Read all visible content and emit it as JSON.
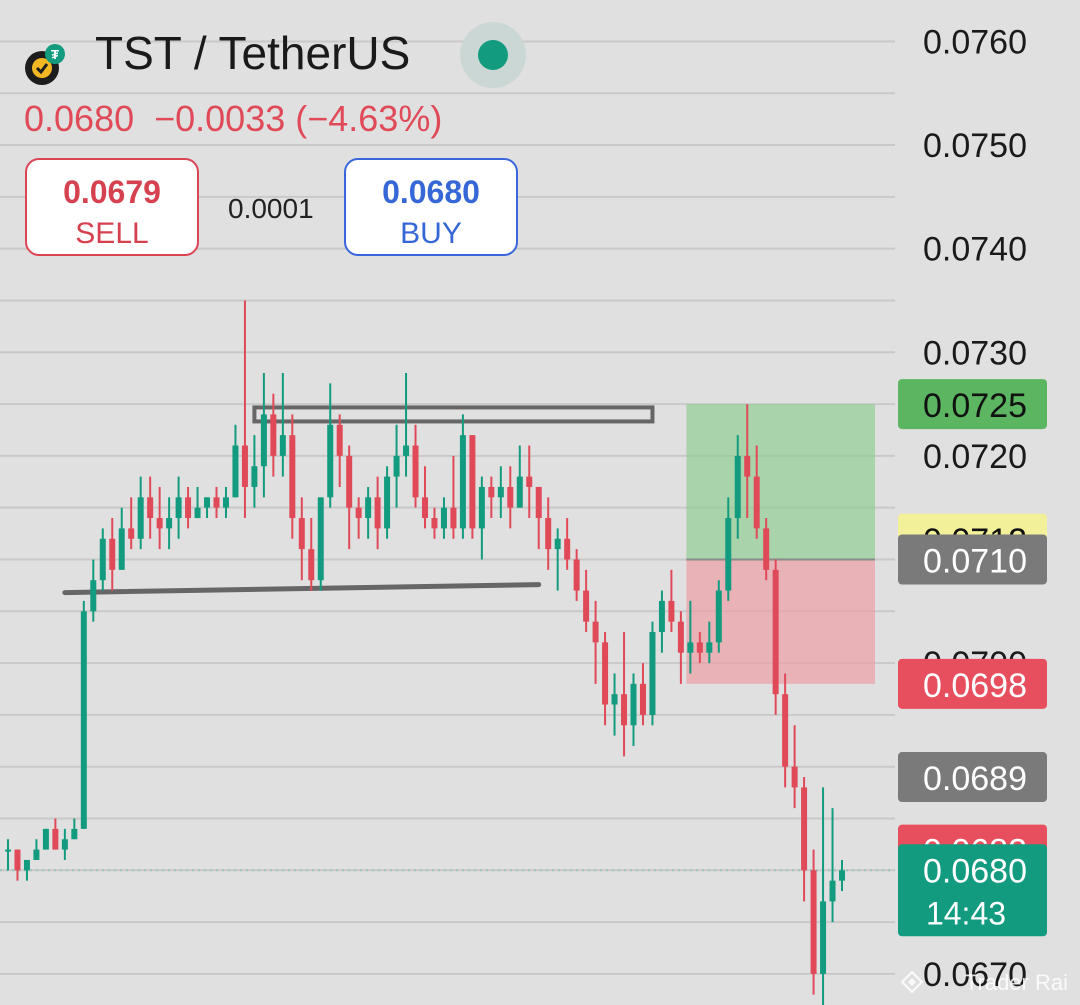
{
  "header": {
    "symbol": "TST / TetherUS",
    "price": "0.0680",
    "change": "−0.0033 (−4.63%)",
    "sell": {
      "price": "0.0679",
      "label": "SELL"
    },
    "buy": {
      "price": "0.0680",
      "label": "BUY"
    },
    "spread": "0.0001"
  },
  "watermark": "Trader Rai",
  "colors": {
    "up": "#129b7f",
    "down": "#e04a58",
    "grid": "#c9c9c9",
    "background": "#e0e0e0"
  },
  "chart_data": {
    "type": "candlestick",
    "title": "TST / TetherUS",
    "ylim": [
      0.0667,
      0.0764
    ],
    "y_ticks": [
      "0.0760",
      "0.0750",
      "0.0740",
      "0.0730",
      "0.0720",
      "0.0700",
      "0.0670"
    ],
    "grid": true,
    "price_labels": [
      {
        "value": 0.0725,
        "text": "0.0725",
        "color": "#5cb560",
        "text_color": "#111111"
      },
      {
        "value": 0.0712,
        "text": "0.0712",
        "color": "#f3f09a",
        "text_color": "#111111"
      },
      {
        "value": 0.071,
        "text": "0.0710",
        "color": "#7a7a7a",
        "text_color": "#ffffff"
      },
      {
        "value": 0.0698,
        "text": "0.0698",
        "color": "#e84f5e",
        "text_color": "#ffffff"
      },
      {
        "value": 0.0689,
        "text": "0.0689",
        "color": "#7a7a7a",
        "text_color": "#ffffff"
      },
      {
        "value": 0.0682,
        "text": "0.0682",
        "color": "#e84f5e",
        "text_color": "#ffffff"
      },
      {
        "value": 0.068,
        "text": "0.0680",
        "sub": "14:43",
        "color": "#129b7f",
        "text_color": "#ffffff"
      }
    ],
    "position": {
      "entry": 0.071,
      "target": 0.0725,
      "stop": 0.0698
    },
    "resistance": 0.0724,
    "support": 0.0707,
    "candles": [
      [
        0.0682,
        0.0683,
        0.068,
        0.0682
      ],
      [
        0.0682,
        0.0682,
        0.0679,
        0.068
      ],
      [
        0.068,
        0.0681,
        0.0679,
        0.0681
      ],
      [
        0.0681,
        0.0683,
        0.0681,
        0.0682
      ],
      [
        0.0682,
        0.0684,
        0.0682,
        0.0684
      ],
      [
        0.0684,
        0.0685,
        0.0682,
        0.0682
      ],
      [
        0.0682,
        0.0684,
        0.0681,
        0.0683
      ],
      [
        0.0683,
        0.0685,
        0.0683,
        0.0684
      ],
      [
        0.0684,
        0.0706,
        0.0684,
        0.0705
      ],
      [
        0.0705,
        0.071,
        0.0704,
        0.0708
      ],
      [
        0.0708,
        0.0713,
        0.0707,
        0.0712
      ],
      [
        0.0712,
        0.0714,
        0.0707,
        0.0709
      ],
      [
        0.0709,
        0.0715,
        0.0709,
        0.0713
      ],
      [
        0.0713,
        0.0716,
        0.0711,
        0.0712
      ],
      [
        0.0712,
        0.0718,
        0.0711,
        0.0716
      ],
      [
        0.0716,
        0.0718,
        0.0712,
        0.0714
      ],
      [
        0.0714,
        0.0717,
        0.0711,
        0.0713
      ],
      [
        0.0713,
        0.0716,
        0.0711,
        0.0714
      ],
      [
        0.0714,
        0.0718,
        0.0712,
        0.0716
      ],
      [
        0.0716,
        0.0717,
        0.0713,
        0.0714
      ],
      [
        0.0714,
        0.0717,
        0.0714,
        0.0715
      ],
      [
        0.0715,
        0.0716,
        0.0714,
        0.0716
      ],
      [
        0.0716,
        0.0717,
        0.0714,
        0.0715
      ],
      [
        0.0715,
        0.0717,
        0.0714,
        0.0716
      ],
      [
        0.0716,
        0.0723,
        0.0716,
        0.0721
      ],
      [
        0.0721,
        0.0735,
        0.0714,
        0.0717
      ],
      [
        0.0717,
        0.0722,
        0.0715,
        0.0719
      ],
      [
        0.0719,
        0.0728,
        0.0716,
        0.0724
      ],
      [
        0.0724,
        0.0726,
        0.0718,
        0.072
      ],
      [
        0.072,
        0.0728,
        0.0718,
        0.0722
      ],
      [
        0.0722,
        0.0724,
        0.0712,
        0.0714
      ],
      [
        0.0714,
        0.0716,
        0.0708,
        0.0711
      ],
      [
        0.0711,
        0.0714,
        0.0707,
        0.0708
      ],
      [
        0.0708,
        0.0716,
        0.0707,
        0.0716
      ],
      [
        0.0716,
        0.0727,
        0.0715,
        0.0723
      ],
      [
        0.0723,
        0.0724,
        0.0717,
        0.072
      ],
      [
        0.072,
        0.0721,
        0.0711,
        0.0715
      ],
      [
        0.0715,
        0.0716,
        0.0712,
        0.0714
      ],
      [
        0.0714,
        0.0717,
        0.0712,
        0.0716
      ],
      [
        0.0716,
        0.0718,
        0.0711,
        0.0713
      ],
      [
        0.0713,
        0.0719,
        0.0712,
        0.0718
      ],
      [
        0.0718,
        0.0723,
        0.0715,
        0.072
      ],
      [
        0.072,
        0.0728,
        0.0718,
        0.0721
      ],
      [
        0.0721,
        0.0723,
        0.0715,
        0.0716
      ],
      [
        0.0716,
        0.0719,
        0.0713,
        0.0714
      ],
      [
        0.0714,
        0.0715,
        0.0712,
        0.0713
      ],
      [
        0.0713,
        0.0716,
        0.0712,
        0.0715
      ],
      [
        0.0715,
        0.072,
        0.0712,
        0.0713
      ],
      [
        0.0713,
        0.0724,
        0.0712,
        0.0722
      ],
      [
        0.0722,
        0.0722,
        0.0712,
        0.0713
      ],
      [
        0.0713,
        0.0718,
        0.071,
        0.0717
      ],
      [
        0.0717,
        0.0718,
        0.0714,
        0.0716
      ],
      [
        0.0716,
        0.0719,
        0.0714,
        0.0717
      ],
      [
        0.0717,
        0.0719,
        0.0713,
        0.0715
      ],
      [
        0.0715,
        0.0721,
        0.0715,
        0.0718
      ],
      [
        0.0718,
        0.0721,
        0.0714,
        0.0717
      ],
      [
        0.0717,
        0.0717,
        0.0711,
        0.0714
      ],
      [
        0.0714,
        0.0716,
        0.0709,
        0.0711
      ],
      [
        0.0711,
        0.0713,
        0.0707,
        0.0712
      ],
      [
        0.0712,
        0.0714,
        0.0709,
        0.071
      ],
      [
        0.071,
        0.0711,
        0.0706,
        0.0707
      ],
      [
        0.0707,
        0.0709,
        0.0703,
        0.0704
      ],
      [
        0.0704,
        0.0706,
        0.0698,
        0.0702
      ],
      [
        0.0702,
        0.0703,
        0.0694,
        0.0696
      ],
      [
        0.0696,
        0.0699,
        0.0693,
        0.0697
      ],
      [
        0.0697,
        0.0703,
        0.0691,
        0.0694
      ],
      [
        0.0694,
        0.0699,
        0.0692,
        0.0698
      ],
      [
        0.0698,
        0.07,
        0.0694,
        0.0695
      ],
      [
        0.0695,
        0.0704,
        0.0694,
        0.0703
      ],
      [
        0.0703,
        0.0707,
        0.0701,
        0.0706
      ],
      [
        0.0706,
        0.0709,
        0.0703,
        0.0704
      ],
      [
        0.0704,
        0.0705,
        0.0698,
        0.0701
      ],
      [
        0.0701,
        0.0706,
        0.0699,
        0.0702
      ],
      [
        0.0702,
        0.0703,
        0.07,
        0.0701
      ],
      [
        0.0701,
        0.0704,
        0.07,
        0.0702
      ],
      [
        0.0702,
        0.0708,
        0.0701,
        0.0707
      ],
      [
        0.0707,
        0.0716,
        0.0706,
        0.0714
      ],
      [
        0.0714,
        0.0722,
        0.0712,
        0.072
      ],
      [
        0.072,
        0.0725,
        0.0714,
        0.0718
      ],
      [
        0.0718,
        0.0721,
        0.0712,
        0.0713
      ],
      [
        0.0713,
        0.0714,
        0.0708,
        0.0709
      ],
      [
        0.0709,
        0.071,
        0.0695,
        0.0697
      ],
      [
        0.0697,
        0.0699,
        0.0688,
        0.069
      ],
      [
        0.069,
        0.0694,
        0.0686,
        0.0688
      ],
      [
        0.0688,
        0.0689,
        0.0677,
        0.068
      ],
      [
        0.068,
        0.0682,
        0.0668,
        0.067
      ],
      [
        0.067,
        0.0688,
        0.0667,
        0.0677
      ],
      [
        0.0677,
        0.0686,
        0.0675,
        0.0679
      ],
      [
        0.0679,
        0.0681,
        0.0678,
        0.068
      ]
    ]
  }
}
